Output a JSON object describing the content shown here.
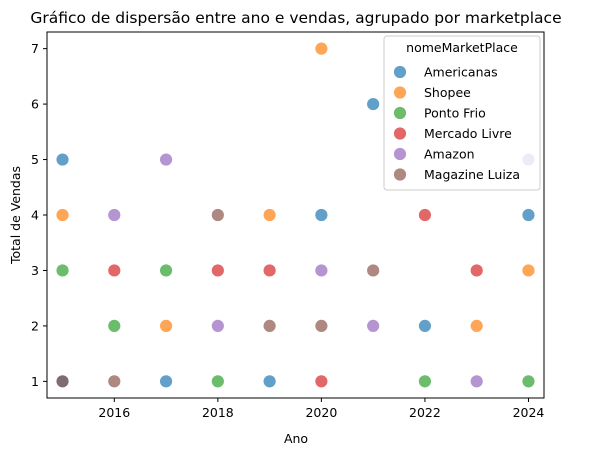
{
  "chart_data": {
    "type": "scatter",
    "title": "Gráfico de dispersão entre ano e vendas, agrupado por marketplace",
    "xlabel": "Ano",
    "ylabel": "Total de Vendas",
    "xlim": [
      2014.7,
      2024.3
    ],
    "ylim": [
      0.7,
      7.3
    ],
    "xticks": [
      2016,
      2018,
      2020,
      2022,
      2024
    ],
    "yticks": [
      1,
      2,
      3,
      4,
      5,
      6,
      7
    ],
    "grid": false,
    "legend": {
      "title": "nomeMarketPlace",
      "placement": "top-right"
    },
    "series": [
      {
        "name": "Americanas",
        "color": "#1f77b4",
        "points": [
          [
            2015,
            5
          ],
          [
            2015,
            1
          ],
          [
            2017,
            1
          ],
          [
            2019,
            1
          ],
          [
            2020,
            4
          ],
          [
            2021,
            6
          ],
          [
            2022,
            2
          ],
          [
            2024,
            4
          ]
        ]
      },
      {
        "name": "Shopee",
        "color": "#ff7f0e",
        "points": [
          [
            2015,
            4
          ],
          [
            2017,
            2
          ],
          [
            2019,
            4
          ],
          [
            2020,
            7
          ],
          [
            2023,
            2
          ],
          [
            2024,
            3
          ]
        ]
      },
      {
        "name": "Ponto Frio",
        "color": "#2ca02c",
        "points": [
          [
            2015,
            3
          ],
          [
            2016,
            2
          ],
          [
            2017,
            3
          ],
          [
            2018,
            1
          ],
          [
            2022,
            1
          ],
          [
            2024,
            1
          ]
        ]
      },
      {
        "name": "Mercado Livre",
        "color": "#d62728",
        "points": [
          [
            2016,
            3
          ],
          [
            2018,
            3
          ],
          [
            2019,
            3
          ],
          [
            2020,
            1
          ],
          [
            2022,
            4
          ],
          [
            2023,
            3
          ]
        ]
      },
      {
        "name": "Amazon",
        "color": "#9467bd",
        "points": [
          [
            2016,
            4
          ],
          [
            2017,
            5
          ],
          [
            2018,
            2
          ],
          [
            2020,
            3
          ],
          [
            2021,
            2
          ],
          [
            2023,
            1
          ],
          [
            2024,
            5
          ]
        ]
      },
      {
        "name": "Magazine Luiza",
        "color": "#8c564b",
        "points": [
          [
            2015,
            1
          ],
          [
            2016,
            1
          ],
          [
            2018,
            4
          ],
          [
            2019,
            2
          ],
          [
            2020,
            2
          ],
          [
            2021,
            3
          ]
        ]
      }
    ]
  }
}
